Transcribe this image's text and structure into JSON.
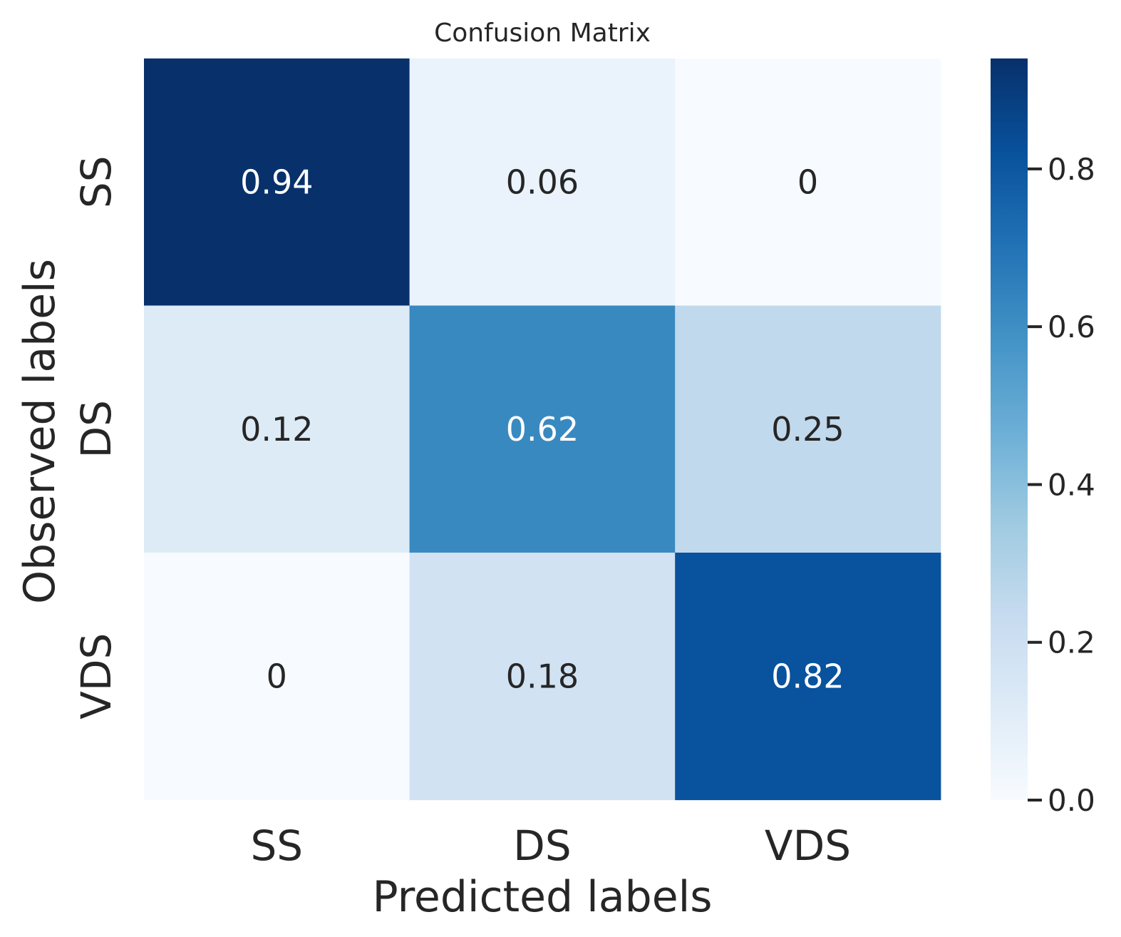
{
  "chart_data": {
    "type": "heatmap",
    "title": "Confusion Matrix",
    "xlabel": "Predicted labels",
    "ylabel": "Observed labels",
    "x_categories": [
      "SS",
      "DS",
      "VDS"
    ],
    "y_categories": [
      "SS",
      "DS",
      "VDS"
    ],
    "values": [
      [
        0.94,
        0.06,
        0
      ],
      [
        0.12,
        0.62,
        0.25
      ],
      [
        0,
        0.18,
        0.82
      ]
    ],
    "cell_labels": [
      [
        "0.94",
        "0.06",
        "0"
      ],
      [
        "0.12",
        "0.62",
        "0.25"
      ],
      [
        "0",
        "0.18",
        "0.82"
      ]
    ],
    "colormap": "Blues",
    "color_range": [
      0,
      0.94
    ],
    "colorbar": {
      "ticks": [
        0.0,
        0.2,
        0.4,
        0.6,
        0.8
      ],
      "tick_labels": [
        "0.0",
        "0.2",
        "0.4",
        "0.6",
        "0.8"
      ]
    }
  }
}
